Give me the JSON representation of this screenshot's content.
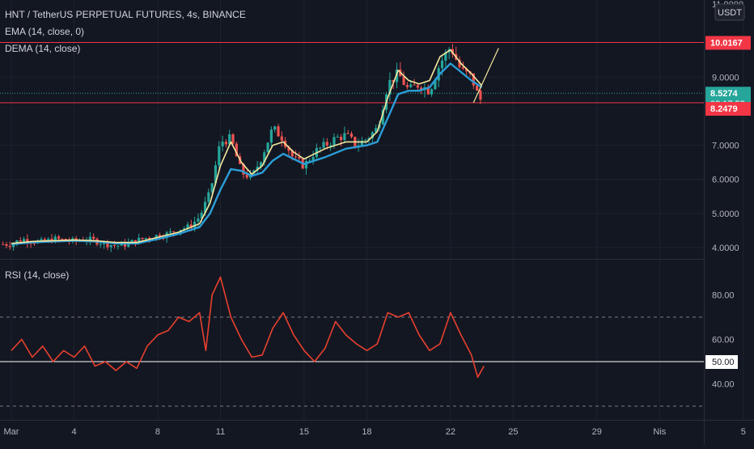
{
  "header": {
    "symbol_line": "HNT / TetherUS PERPETUAL FUTURES, 4s, BINANCE",
    "ema_label": "EMA (14, close, 0)",
    "dema_label": "DEMA (14, close)",
    "rsi_label": "RSI (14, close)",
    "currency": "USDT"
  },
  "price_axis": {
    "ticks": [
      "4.0000",
      "5.0000",
      "6.0000",
      "7.0000",
      "9.0000"
    ],
    "top_clip": "11.0000",
    "badges": {
      "resistance": "10.0167",
      "last": "8.5274",
      "countdown": "02:17:53",
      "support": "8.2479"
    }
  },
  "rsi_axis": {
    "ticks": [
      "40.00",
      "60.00",
      "80.00"
    ],
    "midline": "50.00"
  },
  "time_axis": {
    "labels": [
      "Mar",
      "4",
      "8",
      "11",
      "15",
      "18",
      "22",
      "25",
      "29",
      "Nis",
      "5"
    ]
  },
  "colors": {
    "background": "#131722",
    "bull": "#26a69a",
    "bear": "#ef5350",
    "ema": "#f5e79e",
    "dema": "#2b9ed8",
    "rsi": "#e8402e",
    "hline": "#f23645",
    "last_price": "#26a69a",
    "trend": "#f5e79e"
  },
  "chart_data": [
    {
      "type": "candlestick",
      "title": "HNT / TetherUS PERPETUAL FUTURES, 4s, BINANCE",
      "x_unit": "day (March)",
      "ylim": [
        3.85,
        10.95
      ],
      "series": [
        {
          "name": "HNT/USDT",
          "kind": "close_approx",
          "x": [
            1,
            1.5,
            2,
            2.5,
            3,
            3.5,
            4,
            4.5,
            5,
            5.5,
            6,
            6.5,
            7,
            7.5,
            8,
            8.5,
            9,
            9.5,
            10,
            10.5,
            11,
            11.5,
            12,
            12.5,
            13,
            13.5,
            14,
            14.5,
            15,
            15.5,
            16,
            16.5,
            17,
            17.5,
            18,
            18.5,
            19,
            19.5,
            20,
            20.5,
            21,
            21.5,
            22,
            22.5,
            23,
            23.4,
            23.6
          ],
          "y": [
            4.1,
            4.25,
            4.2,
            4.15,
            4.25,
            4.22,
            4.18,
            4.25,
            4.2,
            4.12,
            4.05,
            4.1,
            4.2,
            4.3,
            4.35,
            4.4,
            4.55,
            4.6,
            4.9,
            5.6,
            7.1,
            7.2,
            6.2,
            6.05,
            6.7,
            7.5,
            7.2,
            6.6,
            6.4,
            6.8,
            7.0,
            7.2,
            7.3,
            7.0,
            7.2,
            7.5,
            8.8,
            9.1,
            8.6,
            8.8,
            8.6,
            9.4,
            9.9,
            9.2,
            9.0,
            8.3,
            8.53
          ]
        },
        {
          "name": "EMA (14, close, 0)",
          "x": [
            1,
            2,
            3,
            4,
            5,
            6,
            7,
            8,
            9,
            10,
            10.5,
            11,
            11.5,
            12,
            12.5,
            13,
            13.5,
            14,
            14.5,
            15,
            16,
            17,
            18,
            18.5,
            19,
            19.5,
            20,
            20.5,
            21,
            21.5,
            22,
            22.5,
            23,
            23.5
          ],
          "y": [
            4.12,
            4.18,
            4.2,
            4.22,
            4.2,
            4.15,
            4.15,
            4.3,
            4.45,
            4.7,
            5.3,
            6.4,
            7.1,
            6.5,
            6.15,
            6.4,
            7.0,
            7.1,
            6.8,
            6.6,
            6.9,
            7.1,
            7.1,
            7.4,
            8.4,
            9.2,
            8.9,
            8.8,
            8.9,
            9.6,
            9.8,
            9.4,
            9.1,
            8.75
          ]
        },
        {
          "name": "DEMA (14, close)",
          "x": [
            1,
            2,
            3,
            4,
            5,
            6,
            7,
            8,
            9,
            10,
            10.5,
            11,
            11.5,
            12,
            12.5,
            13,
            13.5,
            14,
            14.5,
            15,
            16,
            17,
            18,
            18.5,
            19,
            19.5,
            20,
            20.5,
            21,
            21.5,
            22,
            22.5,
            23,
            23.5
          ],
          "y": [
            4.1,
            4.15,
            4.18,
            4.2,
            4.18,
            4.12,
            4.12,
            4.25,
            4.4,
            4.6,
            5.0,
            5.7,
            6.3,
            6.25,
            6.1,
            6.2,
            6.55,
            6.75,
            6.6,
            6.45,
            6.65,
            6.9,
            7.0,
            7.1,
            7.8,
            8.5,
            8.6,
            8.6,
            8.7,
            9.1,
            9.4,
            9.15,
            8.9,
            8.7
          ]
        }
      ],
      "horizontal_lines": [
        10.0167,
        8.2479
      ],
      "last_price": 8.5274,
      "trend_line": {
        "x": [
          23.1,
          24.3
        ],
        "y": [
          8.25,
          9.85
        ]
      }
    },
    {
      "type": "line",
      "title": "RSI (14, close)",
      "ylim": [
        25,
        100
      ],
      "levels": [
        70,
        50,
        30
      ],
      "series": [
        {
          "name": "RSI (14, close)",
          "x": [
            1,
            1.5,
            2,
            2.5,
            3,
            3.5,
            4,
            4.5,
            5,
            5.5,
            6,
            6.5,
            7,
            7.5,
            8,
            8.5,
            9,
            9.5,
            10,
            10.3,
            10.6,
            11,
            11.5,
            12,
            12.5,
            13,
            13.5,
            14,
            14.5,
            15,
            15.5,
            16,
            16.5,
            17,
            17.5,
            18,
            18.5,
            19,
            19.5,
            20,
            20.5,
            21,
            21.5,
            22,
            22.5,
            23,
            23.3,
            23.6
          ],
          "y": [
            55,
            60,
            52,
            57,
            50,
            55,
            52,
            57,
            48,
            50,
            46,
            50,
            47,
            57,
            62,
            64,
            70,
            68,
            72,
            55,
            80,
            88,
            70,
            60,
            52,
            53,
            65,
            72,
            62,
            55,
            50,
            56,
            68,
            62,
            58,
            55,
            58,
            72,
            70,
            72,
            62,
            55,
            58,
            72,
            62,
            53,
            43,
            48
          ]
        }
      ]
    }
  ]
}
